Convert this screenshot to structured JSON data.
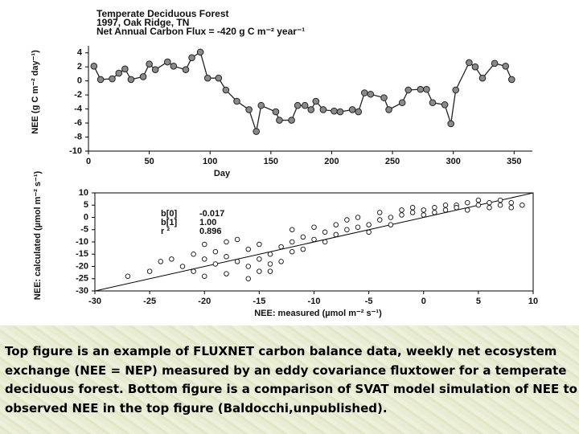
{
  "chart_data": [
    {
      "type": "line",
      "title": "Temperate Deciduous Forest",
      "subtitle": [
        "1997, Oak Ridge, TN",
        "Net Annual Carbon Flux = -420 g C m⁻² year⁻¹"
      ],
      "x_label": "Day",
      "y_label": "NEE (g C m⁻² day⁻¹)",
      "x": [
        4.5,
        10,
        19.5,
        25,
        30,
        35,
        45,
        50,
        55,
        65,
        70,
        80,
        85,
        92,
        98,
        107,
        113,
        122,
        132,
        138,
        142,
        154,
        157,
        167,
        172,
        178,
        183,
        187,
        193,
        202,
        207,
        217,
        222,
        227,
        232,
        243,
        247,
        258,
        263,
        273,
        278,
        283,
        293,
        298,
        302,
        313,
        318,
        324,
        334,
        343,
        348
      ],
      "values": [
        2.1,
        0.2,
        0.3,
        1.1,
        1.7,
        0.2,
        0.6,
        2.4,
        1.6,
        2.7,
        2.1,
        1.6,
        3.3,
        4.1,
        0.4,
        0.4,
        -1.3,
        -2.9,
        -4.1,
        -7.2,
        -3.5,
        -4.4,
        -5.6,
        -5.6,
        -3.5,
        -3.5,
        -4.1,
        -2.9,
        -4.1,
        -4.3,
        -4.4,
        -4.1,
        -4.4,
        -1.7,
        -1.9,
        -2.4,
        -4.1,
        -3.1,
        -1.3,
        -1.2,
        -1.2,
        -3.1,
        -3.4,
        -6.1,
        -1.3,
        2.6,
        2.0,
        0.4,
        2.5,
        2.1,
        0.2
      ],
      "color": "#222222",
      "marker_color": "#8a8a8a",
      "xlim": [
        0,
        365
      ],
      "xticks": [
        0,
        50,
        100,
        150,
        200,
        250,
        300,
        350
      ],
      "ylim": [
        -10,
        5
      ],
      "yticks": [
        -10,
        -8,
        -6,
        -4,
        -2,
        0,
        2,
        4
      ]
    },
    {
      "type": "scatter",
      "x_label": "NEE: measured (µmol m⁻² s⁻¹)",
      "y_label": "NEE: calculated (µmol m⁻² s⁻¹)",
      "x": [
        -27,
        -25,
        -24,
        -23,
        -22,
        -21,
        -21,
        -20,
        -20,
        -19,
        -19,
        -18,
        -18,
        -17,
        -17,
        -16,
        -16,
        -15,
        -15,
        -15,
        -14,
        -14,
        -13,
        -13,
        -12,
        -12,
        -11,
        -11,
        -10,
        -10,
        -9,
        -9,
        -8,
        -8,
        -7,
        -7,
        -6,
        -6,
        -5,
        -5,
        -4,
        -4,
        -3,
        -3,
        -2,
        -2,
        -1,
        -1,
        0,
        0,
        1,
        1,
        2,
        2,
        3,
        3,
        4,
        4,
        5,
        5,
        6,
        6,
        7,
        7,
        8,
        8,
        9,
        -18,
        -16,
        -14,
        -20,
        -12
      ],
      "values": [
        -24,
        -22,
        -18,
        -17,
        -20,
        -15,
        -22,
        -17,
        -24,
        -19,
        -14,
        -16,
        -23,
        -18,
        -9,
        -20,
        -13,
        -17,
        -22,
        -11,
        -15,
        -19,
        -12,
        -18,
        -10,
        -14,
        -8,
        -13,
        -9,
        -4,
        -10,
        -6,
        -7,
        -3,
        -5,
        -1,
        -4,
        0,
        -3,
        -6,
        -1,
        2,
        0,
        -3,
        1,
        3,
        2,
        4,
        3,
        1,
        4,
        2,
        5,
        3,
        5,
        4,
        6,
        3,
        5,
        7,
        4,
        6,
        5,
        7,
        6,
        4,
        5,
        -10,
        -25,
        -22,
        -11,
        -5
      ],
      "fit": {
        "names": [
          "b[0]",
          "b[1]",
          "r ²"
        ],
        "values": [
          -0.017,
          1,
          0.896
        ],
        "value_labels": [
          "-0.017",
          "1.00",
          "0.896"
        ]
      },
      "xlim": [
        -30,
        10
      ],
      "xticks": [
        -30,
        -25,
        -20,
        -15,
        -10,
        -5,
        0,
        5,
        10
      ],
      "ylim": [
        -30,
        10
      ],
      "yticks": [
        -30,
        -25,
        -20,
        -15,
        -10,
        -5,
        0,
        5,
        10
      ]
    }
  ],
  "caption": "Top figure is an example of FLUXNET carbon balance data, weekly net ecosystem exchange (NEE = NEP) measured by an eddy covariance fluxtower for a temperate deciduous forest.  Bottom figure is a comparison of SVAT model simulation of NEE to observed NEE in the top figure (Baldocchi,unpublished)."
}
